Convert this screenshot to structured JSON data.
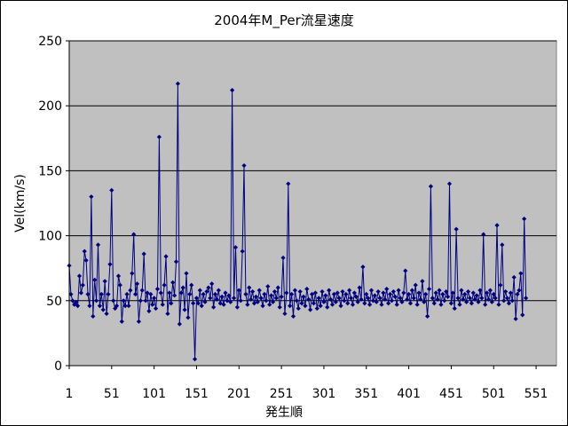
{
  "chart_data": {
    "type": "line",
    "title": "2004年M_Per流星速度",
    "xlabel": "発生順",
    "ylabel": "Vel(km/s)",
    "ylim": [
      0,
      250
    ],
    "yticks": [
      0,
      50,
      100,
      150,
      200,
      250
    ],
    "xlim": [
      1,
      575
    ],
    "xticks": [
      1,
      51,
      101,
      151,
      201,
      251,
      301,
      351,
      401,
      451,
      501,
      551
    ],
    "grid": "horizontal",
    "colors": {
      "plot_bg": "#c0c0c0",
      "series": "#000080",
      "grid": "#000000"
    },
    "series": [
      {
        "marker": "diamond",
        "points": [
          [
            1,
            77
          ],
          [
            3,
            55
          ],
          [
            5,
            50
          ],
          [
            7,
            47
          ],
          [
            9,
            49
          ],
          [
            11,
            46
          ],
          [
            13,
            69
          ],
          [
            15,
            56
          ],
          [
            17,
            62
          ],
          [
            19,
            88
          ],
          [
            21,
            81
          ],
          [
            23,
            55
          ],
          [
            25,
            46
          ],
          [
            27,
            130
          ],
          [
            29,
            38
          ],
          [
            31,
            66
          ],
          [
            33,
            50
          ],
          [
            35,
            93
          ],
          [
            37,
            46
          ],
          [
            39,
            55
          ],
          [
            41,
            43
          ],
          [
            43,
            65
          ],
          [
            45,
            40
          ],
          [
            47,
            55
          ],
          [
            49,
            78
          ],
          [
            51,
            135
          ],
          [
            53,
            50
          ],
          [
            55,
            44
          ],
          [
            57,
            46
          ],
          [
            59,
            69
          ],
          [
            61,
            62
          ],
          [
            63,
            34
          ],
          [
            65,
            50
          ],
          [
            67,
            46
          ],
          [
            69,
            55
          ],
          [
            71,
            46
          ],
          [
            73,
            58
          ],
          [
            75,
            71
          ],
          [
            77,
            101
          ],
          [
            79,
            55
          ],
          [
            81,
            63
          ],
          [
            83,
            34
          ],
          [
            85,
            50
          ],
          [
            87,
            58
          ],
          [
            89,
            86
          ],
          [
            91,
            50
          ],
          [
            93,
            56
          ],
          [
            95,
            42
          ],
          [
            97,
            55
          ],
          [
            99,
            47
          ],
          [
            101,
            52
          ],
          [
            103,
            44
          ],
          [
            105,
            59
          ],
          [
            107,
            176
          ],
          [
            109,
            56
          ],
          [
            111,
            47
          ],
          [
            113,
            62
          ],
          [
            115,
            84
          ],
          [
            117,
            40
          ],
          [
            119,
            56
          ],
          [
            121,
            48
          ],
          [
            123,
            64
          ],
          [
            125,
            54
          ],
          [
            127,
            80
          ],
          [
            129,
            217
          ],
          [
            131,
            32
          ],
          [
            133,
            56
          ],
          [
            135,
            60
          ],
          [
            137,
            43
          ],
          [
            139,
            71
          ],
          [
            141,
            37
          ],
          [
            143,
            55
          ],
          [
            145,
            62
          ],
          [
            147,
            48
          ],
          [
            149,
            5
          ],
          [
            151,
            52
          ],
          [
            153,
            48
          ],
          [
            155,
            58
          ],
          [
            157,
            46
          ],
          [
            159,
            55
          ],
          [
            161,
            49
          ],
          [
            163,
            57
          ],
          [
            165,
            60
          ],
          [
            167,
            52
          ],
          [
            169,
            63
          ],
          [
            171,
            45
          ],
          [
            173,
            55
          ],
          [
            175,
            51
          ],
          [
            177,
            58
          ],
          [
            179,
            48
          ],
          [
            181,
            53
          ],
          [
            183,
            47
          ],
          [
            185,
            56
          ],
          [
            187,
            50
          ],
          [
            189,
            54
          ],
          [
            191,
            49
          ],
          [
            193,
            212
          ],
          [
            195,
            52
          ],
          [
            197,
            91
          ],
          [
            199,
            45
          ],
          [
            201,
            58
          ],
          [
            203,
            50
          ],
          [
            205,
            88
          ],
          [
            207,
            154
          ],
          [
            209,
            55
          ],
          [
            211,
            47
          ],
          [
            213,
            60
          ],
          [
            215,
            51
          ],
          [
            217,
            57
          ],
          [
            219,
            48
          ],
          [
            221,
            53
          ],
          [
            223,
            49
          ],
          [
            225,
            58
          ],
          [
            227,
            52
          ],
          [
            229,
            46
          ],
          [
            231,
            55
          ],
          [
            233,
            50
          ],
          [
            235,
            61
          ],
          [
            237,
            47
          ],
          [
            239,
            54
          ],
          [
            241,
            49
          ],
          [
            243,
            57
          ],
          [
            245,
            52
          ],
          [
            247,
            60
          ],
          [
            249,
            45
          ],
          [
            251,
            53
          ],
          [
            253,
            83
          ],
          [
            255,
            40
          ],
          [
            257,
            56
          ],
          [
            259,
            140
          ],
          [
            261,
            46
          ],
          [
            263,
            55
          ],
          [
            265,
            38
          ],
          [
            267,
            58
          ],
          [
            269,
            50
          ],
          [
            271,
            44
          ],
          [
            273,
            57
          ],
          [
            275,
            48
          ],
          [
            277,
            53
          ],
          [
            279,
            46
          ],
          [
            281,
            59
          ],
          [
            283,
            51
          ],
          [
            285,
            43
          ],
          [
            287,
            55
          ],
          [
            289,
            48
          ],
          [
            291,
            56
          ],
          [
            293,
            44
          ],
          [
            295,
            52
          ],
          [
            297,
            46
          ],
          [
            299,
            57
          ],
          [
            301,
            49
          ],
          [
            303,
            54
          ],
          [
            305,
            45
          ],
          [
            307,
            58
          ],
          [
            309,
            51
          ],
          [
            311,
            47
          ],
          [
            313,
            55
          ],
          [
            315,
            49
          ],
          [
            317,
            56
          ],
          [
            319,
            52
          ],
          [
            321,
            46
          ],
          [
            323,
            57
          ],
          [
            325,
            50
          ],
          [
            327,
            55
          ],
          [
            329,
            48
          ],
          [
            331,
            58
          ],
          [
            333,
            52
          ],
          [
            335,
            47
          ],
          [
            337,
            56
          ],
          [
            339,
            53
          ],
          [
            341,
            49
          ],
          [
            343,
            60
          ],
          [
            345,
            51
          ],
          [
            347,
            76
          ],
          [
            349,
            48
          ],
          [
            351,
            55
          ],
          [
            353,
            52
          ],
          [
            355,
            47
          ],
          [
            357,
            58
          ],
          [
            359,
            50
          ],
          [
            361,
            54
          ],
          [
            363,
            49
          ],
          [
            365,
            57
          ],
          [
            367,
            52
          ],
          [
            369,
            47
          ],
          [
            371,
            56
          ],
          [
            373,
            51
          ],
          [
            375,
            59
          ],
          [
            377,
            48
          ],
          [
            379,
            55
          ],
          [
            381,
            50
          ],
          [
            383,
            57
          ],
          [
            385,
            53
          ],
          [
            387,
            47
          ],
          [
            389,
            58
          ],
          [
            391,
            52
          ],
          [
            393,
            49
          ],
          [
            395,
            56
          ],
          [
            397,
            73
          ],
          [
            399,
            51
          ],
          [
            401,
            55
          ],
          [
            403,
            48
          ],
          [
            405,
            58
          ],
          [
            407,
            52
          ],
          [
            409,
            62
          ],
          [
            411,
            47
          ],
          [
            413,
            56
          ],
          [
            415,
            51
          ],
          [
            417,
            65
          ],
          [
            419,
            49
          ],
          [
            421,
            55
          ],
          [
            423,
            38
          ],
          [
            425,
            59
          ],
          [
            427,
            138
          ],
          [
            429,
            52
          ],
          [
            431,
            48
          ],
          [
            433,
            56
          ],
          [
            435,
            51
          ],
          [
            437,
            58
          ],
          [
            439,
            47
          ],
          [
            441,
            55
          ],
          [
            443,
            50
          ],
          [
            445,
            57
          ],
          [
            447,
            53
          ],
          [
            449,
            140
          ],
          [
            451,
            48
          ],
          [
            453,
            56
          ],
          [
            455,
            44
          ],
          [
            457,
            105
          ],
          [
            459,
            52
          ],
          [
            461,
            47
          ],
          [
            463,
            58
          ],
          [
            465,
            51
          ],
          [
            467,
            55
          ],
          [
            469,
            49
          ],
          [
            471,
            57
          ],
          [
            473,
            52
          ],
          [
            475,
            48
          ],
          [
            477,
            56
          ],
          [
            479,
            51
          ],
          [
            481,
            54
          ],
          [
            483,
            49
          ],
          [
            485,
            58
          ],
          [
            487,
            52
          ],
          [
            489,
            101
          ],
          [
            491,
            47
          ],
          [
            493,
            56
          ],
          [
            495,
            51
          ],
          [
            497,
            58
          ],
          [
            499,
            49
          ],
          [
            501,
            55
          ],
          [
            503,
            52
          ],
          [
            505,
            108
          ],
          [
            507,
            47
          ],
          [
            509,
            62
          ],
          [
            511,
            93
          ],
          [
            513,
            50
          ],
          [
            515,
            57
          ],
          [
            517,
            52
          ],
          [
            519,
            48
          ],
          [
            521,
            56
          ],
          [
            523,
            50
          ],
          [
            525,
            68
          ],
          [
            527,
            36
          ],
          [
            529,
            55
          ],
          [
            531,
            58
          ],
          [
            533,
            71
          ],
          [
            535,
            39
          ],
          [
            537,
            113
          ],
          [
            539,
            52
          ]
        ]
      }
    ]
  }
}
